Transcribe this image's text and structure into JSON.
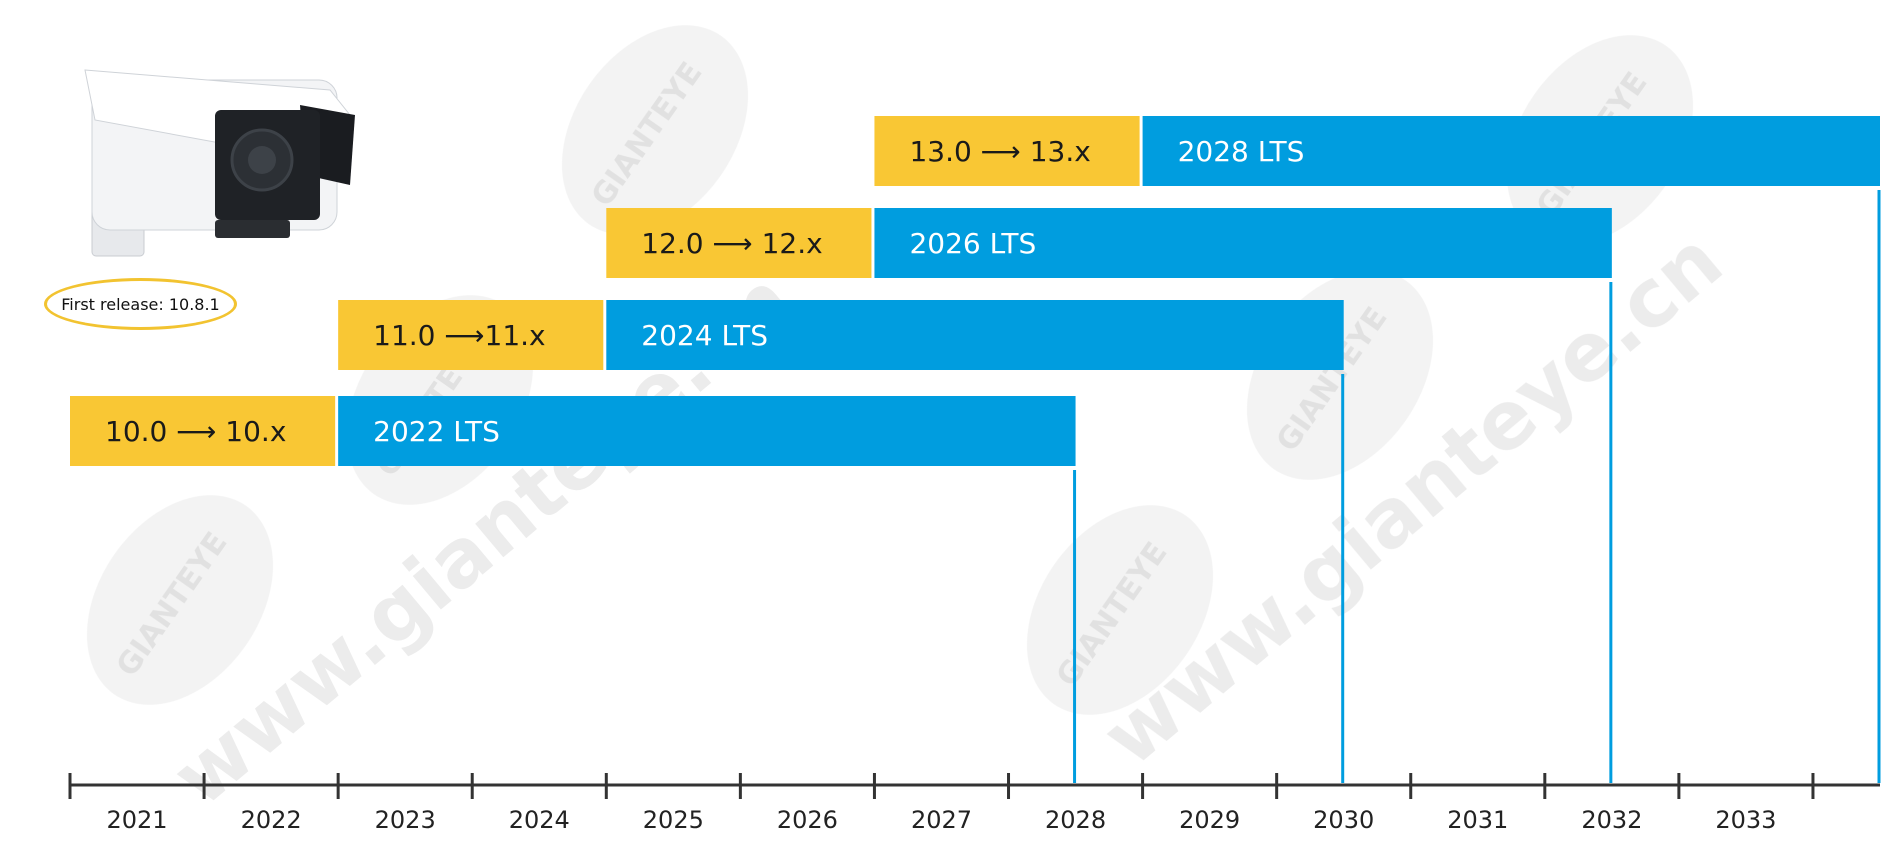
{
  "chart_data": {
    "type": "timeline",
    "xlabel": "",
    "ylabel": "",
    "axis": {
      "start": 2020.5,
      "end": 2034.0,
      "tick_labels": [
        "2021",
        "2022",
        "2023",
        "2024",
        "2025",
        "2026",
        "2027",
        "2028",
        "2029",
        "2030",
        "2031",
        "2032",
        "2033"
      ]
    },
    "tracks": [
      {
        "release_label": "10.0 ⟶ 10.x",
        "release_start": 2020.5,
        "release_end": 2022.5,
        "lts_label": "2022 LTS",
        "lts_start": 2022.5,
        "lts_end": 2028.0
      },
      {
        "release_label": "11.0 ⟶11.x",
        "release_start": 2022.5,
        "release_end": 2024.5,
        "lts_label": "2024 LTS",
        "lts_start": 2024.5,
        "lts_end": 2030.0
      },
      {
        "release_label": "12.0 ⟶ 12.x",
        "release_start": 2024.5,
        "release_end": 2026.5,
        "lts_label": "2026 LTS",
        "lts_start": 2026.5,
        "lts_end": 2032.0
      },
      {
        "release_label": "13.0 ⟶ 13.x",
        "release_start": 2026.5,
        "release_end": 2028.5,
        "lts_label": "2028 LTS",
        "lts_start": 2028.5,
        "lts_end": 2034.0
      }
    ]
  },
  "badge": {
    "text": "First release: 10.8.1"
  },
  "watermark": {
    "logo": "GIANTEYE",
    "url": "www.gianteye.cn"
  },
  "colors": {
    "release": "#f9c734",
    "lts": "#009ddf",
    "axis": "#333333",
    "text_on_release": "#1a1a1a",
    "text_on_lts": "#ffffff"
  }
}
